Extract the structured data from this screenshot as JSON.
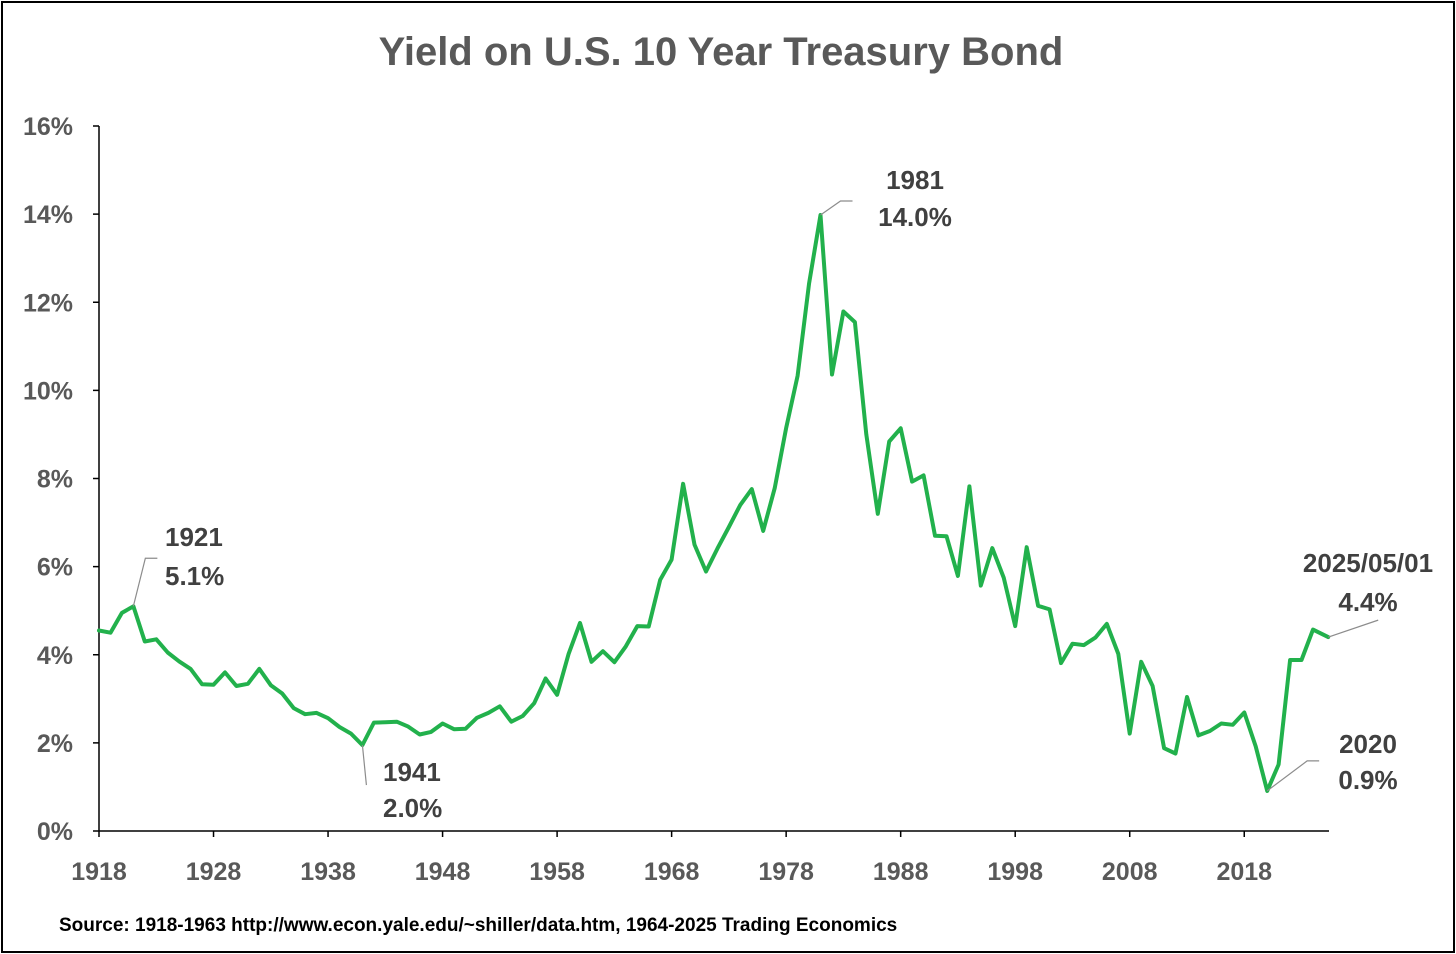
{
  "chart_data": {
    "type": "line",
    "title": "Yield on U.S. 10 Year Treasury Bond",
    "xlabel": "",
    "ylabel": "",
    "x_tick_labels": [
      "1918",
      "1928",
      "1938",
      "1948",
      "1958",
      "1968",
      "1978",
      "1988",
      "1998",
      "2008",
      "2018"
    ],
    "y_tick_labels": [
      "0%",
      "2%",
      "4%",
      "6%",
      "8%",
      "10%",
      "12%",
      "14%",
      "16%"
    ],
    "xlim": [
      1918,
      2025.4
    ],
    "ylim": [
      0,
      16
    ],
    "grid": false,
    "line_color": "#22b14c",
    "series": [
      {
        "x": [
          1918,
          1919,
          1920,
          1921,
          1922,
          1923,
          1924,
          1925,
          1926,
          1927,
          1928,
          1929,
          1930,
          1931,
          1932,
          1933,
          1934,
          1935,
          1936,
          1937,
          1938,
          1939,
          1940,
          1941,
          1942,
          1943,
          1944,
          1945,
          1946,
          1947,
          1948,
          1949,
          1950,
          1951,
          1952,
          1953,
          1954,
          1955,
          1956,
          1957,
          1958,
          1959,
          1960,
          1961,
          1962,
          1963,
          1964,
          1965,
          1966,
          1967,
          1968,
          1969,
          1970,
          1971,
          1972,
          1973,
          1974,
          1975,
          1976,
          1977,
          1978,
          1979,
          1980,
          1981,
          1982,
          1983,
          1984,
          1985,
          1986,
          1987,
          1988,
          1989,
          1990,
          1991,
          1992,
          1993,
          1994,
          1995,
          1996,
          1997,
          1998,
          1999,
          2000,
          2001,
          2002,
          2003,
          2004,
          2005,
          2006,
          2007,
          2008,
          2009,
          2010,
          2011,
          2012,
          2013,
          2014,
          2015,
          2016,
          2017,
          2018,
          2019,
          2020,
          2021,
          2022,
          2023,
          2024,
          2025.33
        ],
        "values": [
          4.55,
          4.5,
          4.95,
          5.1,
          4.3,
          4.35,
          4.05,
          3.85,
          3.68,
          3.33,
          3.32,
          3.6,
          3.29,
          3.34,
          3.68,
          3.31,
          3.12,
          2.79,
          2.65,
          2.68,
          2.56,
          2.36,
          2.21,
          1.95,
          2.46,
          2.47,
          2.48,
          2.37,
          2.19,
          2.25,
          2.44,
          2.31,
          2.32,
          2.57,
          2.68,
          2.83,
          2.48,
          2.61,
          2.9,
          3.46,
          3.09,
          4.02,
          4.72,
          3.84,
          4.08,
          3.83,
          4.19,
          4.65,
          4.64,
          5.7,
          6.16,
          7.88,
          6.5,
          5.89,
          6.41,
          6.9,
          7.4,
          7.76,
          6.81,
          7.78,
          9.15,
          10.33,
          12.43,
          13.98,
          10.36,
          11.79,
          11.55,
          9.0,
          7.2,
          8.84,
          9.14,
          7.93,
          8.07,
          6.7,
          6.69,
          5.79,
          7.82,
          5.57,
          6.42,
          5.75,
          4.65,
          6.44,
          5.11,
          5.03,
          3.81,
          4.25,
          4.22,
          4.39,
          4.7,
          4.02,
          2.21,
          3.84,
          3.29,
          1.88,
          1.76,
          3.04,
          2.17,
          2.27,
          2.44,
          2.41,
          2.69,
          1.92,
          0.91,
          1.51,
          3.88,
          3.88,
          4.57,
          4.4
        ]
      }
    ],
    "annotations": [
      {
        "year": "1921",
        "value": "5.1%",
        "x": 1921,
        "y": 5.1
      },
      {
        "year": "1941",
        "value": "2.0%",
        "x": 1941,
        "y": 1.95
      },
      {
        "year": "1981",
        "value": "14.0%",
        "x": 1981,
        "y": 13.98
      },
      {
        "year": "2020",
        "value": "0.9%",
        "x": 2020,
        "y": 0.91
      },
      {
        "year": "2025/05/01",
        "value": "4.4%",
        "x": 2025.33,
        "y": 4.4
      }
    ],
    "source": "Source: 1918-1963 http://www.econ.yale.edu/~shiller/data.htm, 1964-2025 Trading Economics"
  }
}
